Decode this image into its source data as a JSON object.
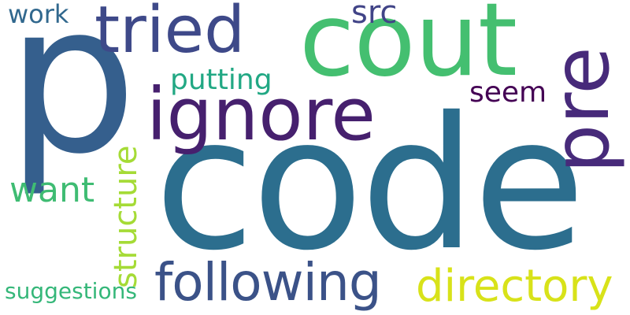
{
  "words": {
    "code": {
      "text": "code",
      "color": "#2c6e8e"
    },
    "p": {
      "text": "p",
      "color": "#355f8d"
    },
    "cout": {
      "text": "cout",
      "color": "#44bf70"
    },
    "ignore": {
      "text": "ignore",
      "color": "#46206e"
    },
    "tried": {
      "text": "tried",
      "color": "#3e4989"
    },
    "pre": {
      "text": "pre",
      "color": "#472a7a"
    },
    "following": {
      "text": "following",
      "color": "#3b5288"
    },
    "directory": {
      "text": "directory",
      "color": "#d8e219"
    },
    "structure": {
      "text": "structure",
      "color": "#a5db36"
    },
    "want": {
      "text": "want",
      "color": "#3fbc73"
    },
    "putting": {
      "text": "putting",
      "color": "#22a884"
    },
    "src": {
      "text": "src",
      "color": "#414487"
    },
    "work": {
      "text": "work",
      "color": "#31688e"
    },
    "seem": {
      "text": "seem",
      "color": "#440154"
    },
    "suggestions": {
      "text": "suggestions",
      "color": "#35b779"
    }
  }
}
